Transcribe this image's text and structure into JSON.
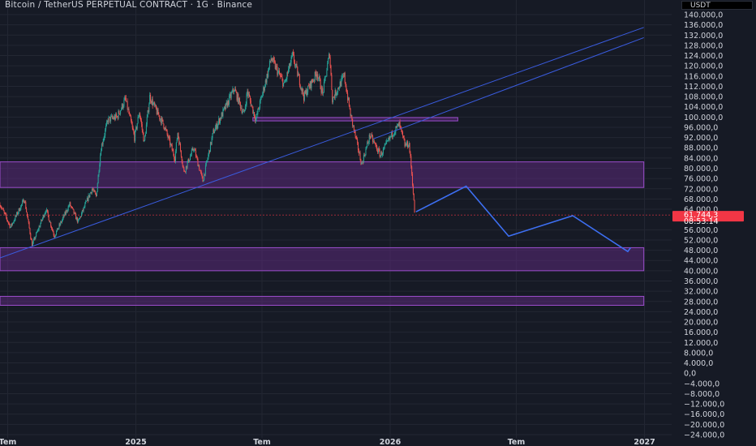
{
  "header": {
    "title": "Bitcoin / TetherUS PERPETUAL CONTRACT · 1G · Binance",
    "currency": "USDT"
  },
  "colors": {
    "background": "#161a25",
    "up": "#26a69a",
    "down": "#ef5350",
    "zone_fill": "#5b2a7a",
    "zone_border": "#9c4dcc",
    "trendline": "#3a5ce0",
    "projection": "#3d6ff2",
    "price_badge": "#f23645"
  },
  "chart_data": {
    "type": "candlestick",
    "ylim": [
      -24000,
      140000
    ],
    "y_ticks": [
      "140.000,0",
      "136.000,0",
      "132.000,0",
      "128.000,0",
      "124.000,0",
      "120.000,0",
      "116.000,0",
      "112.000,0",
      "108.000,0",
      "104.000,0",
      "100.000,0",
      "96.000,0",
      "92.000,0",
      "88.000,0",
      "84.000,0",
      "80.000,0",
      "76.000,0",
      "72.000,0",
      "68.000,0",
      "64.000,0",
      "56.000,0",
      "52.000,0",
      "48.000,0",
      "44.000,0",
      "40.000,0",
      "36.000,0",
      "32.000,0",
      "28.000,0",
      "24.000,0",
      "20.000,0",
      "16.000,0",
      "12.000,0",
      "8.000,0",
      "4.000,0",
      "0,0",
      "−4.000,0",
      "−8.000,0",
      "−12.000,0",
      "−16.000,0",
      "−20.000,0",
      "−24.000,0"
    ],
    "x_ticks": [
      {
        "label": "Tem",
        "date": "2024-07-01"
      },
      {
        "label": "2025",
        "date": "2025-01-01"
      },
      {
        "label": "Tem",
        "date": "2025-07-01"
      },
      {
        "label": "2026",
        "date": "2026-01-01"
      },
      {
        "label": "Tem",
        "date": "2026-07-01"
      },
      {
        "label": "2027",
        "date": "2027-01-01"
      }
    ],
    "x_range": [
      "2024-06-20",
      "2027-06-10"
    ],
    "price_path": [
      [
        "2024-06-20",
        66000
      ],
      [
        "2024-07-05",
        57000
      ],
      [
        "2024-07-25",
        68000
      ],
      [
        "2024-08-05",
        50000
      ],
      [
        "2024-08-25",
        64000
      ],
      [
        "2024-09-06",
        53500
      ],
      [
        "2024-09-28",
        66000
      ],
      [
        "2024-10-10",
        59000
      ],
      [
        "2024-10-30",
        72000
      ],
      [
        "2024-11-05",
        69000
      ],
      [
        "2024-11-12",
        88000
      ],
      [
        "2024-11-22",
        99000
      ],
      [
        "2024-12-05",
        100000
      ],
      [
        "2024-12-17",
        107000
      ],
      [
        "2024-12-30",
        92000
      ],
      [
        "2025-01-06",
        102000
      ],
      [
        "2025-01-13",
        90000
      ],
      [
        "2025-01-21",
        108000
      ],
      [
        "2025-01-31",
        102000
      ],
      [
        "2025-02-10",
        97000
      ],
      [
        "2025-02-26",
        84000
      ],
      [
        "2025-03-02",
        94000
      ],
      [
        "2025-03-11",
        78500
      ],
      [
        "2025-03-25",
        88000
      ],
      [
        "2025-04-07",
        75000
      ],
      [
        "2025-04-22",
        94000
      ],
      [
        "2025-05-10",
        104000
      ],
      [
        "2025-05-22",
        111000
      ],
      [
        "2025-06-05",
        101000
      ],
      [
        "2025-06-10",
        110000
      ],
      [
        "2025-06-22",
        99000
      ],
      [
        "2025-07-10",
        118000
      ],
      [
        "2025-07-14",
        123000
      ],
      [
        "2025-08-02",
        112500
      ],
      [
        "2025-08-14",
        124000
      ],
      [
        "2025-08-30",
        108000
      ],
      [
        "2025-09-18",
        117500
      ],
      [
        "2025-09-26",
        109000
      ],
      [
        "2025-10-06",
        125000
      ],
      [
        "2025-10-10",
        107000
      ],
      [
        "2025-10-27",
        116000
      ],
      [
        "2025-11-05",
        101000
      ],
      [
        "2025-11-21",
        81500
      ],
      [
        "2025-12-03",
        93000
      ],
      [
        "2025-12-18",
        85000
      ],
      [
        "2026-01-05",
        94000
      ],
      [
        "2026-01-14",
        97000
      ],
      [
        "2026-01-22",
        89000
      ],
      [
        "2026-01-28",
        89500
      ],
      [
        "2026-02-01",
        78000
      ],
      [
        "2026-02-05",
        63000
      ]
    ],
    "last_price": "61.744,3",
    "countdown": "08:53:14",
    "zones": [
      {
        "from": 72500,
        "to": 82500,
        "start": "2024-06-20",
        "end": "2026-12-31"
      },
      {
        "from": 40000,
        "to": 49000,
        "start": "2024-06-20",
        "end": "2026-12-31"
      },
      {
        "from": 26500,
        "to": 30000,
        "start": "2024-06-20",
        "end": "2026-12-31"
      },
      {
        "from": 98500,
        "to": 99800,
        "start": "2025-06-18",
        "end": "2026-04-08"
      }
    ],
    "trendlines": [
      {
        "start": [
          "2024-06-20",
          45000
        ],
        "end": [
          "2026-12-31",
          135000
        ]
      },
      {
        "start": [
          "2025-12-08",
          91500
        ],
        "end": [
          "2026-12-31",
          131000
        ]
      }
    ],
    "projection": [
      [
        "2026-02-07",
        63000
      ],
      [
        "2026-04-20",
        73000
      ],
      [
        "2026-06-20",
        53500
      ],
      [
        "2026-09-20",
        61500
      ],
      [
        "2026-12-08",
        47500
      ],
      [
        "2026-12-12",
        49000
      ]
    ]
  }
}
